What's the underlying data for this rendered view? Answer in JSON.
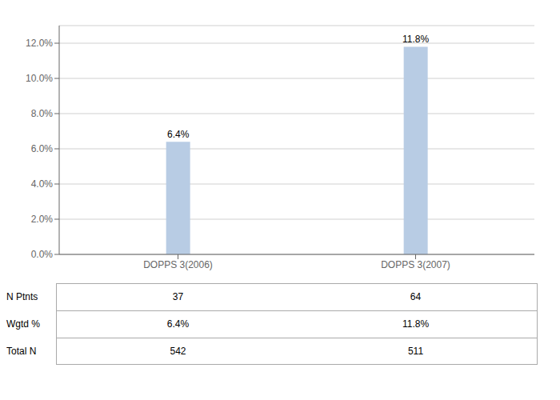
{
  "chart_data": {
    "type": "bar",
    "categories": [
      "DOPPS 3(2006)",
      "DOPPS 3(2007)"
    ],
    "values": [
      6.4,
      11.8
    ],
    "value_labels": [
      "6.4%",
      "11.8%"
    ],
    "data_labels": true,
    "color": "#b8cce4",
    "ylim": [
      0,
      13.0
    ],
    "yticks": [
      {
        "value": 0,
        "label": "0.0%"
      },
      {
        "value": 2.0,
        "label": "2.0%"
      },
      {
        "value": 4.0,
        "label": "4.0%"
      },
      {
        "value": 6.0,
        "label": "6.0%"
      },
      {
        "value": 8.0,
        "label": "8.0%"
      },
      {
        "value": 10.0,
        "label": "10.0%"
      },
      {
        "value": 12.0,
        "label": "12.0%"
      }
    ],
    "grid": true,
    "table": [
      {
        "label": "N Ptnts",
        "values": [
          37,
          64
        ]
      },
      {
        "label": "Wgtd %",
        "values": [
          6.4,
          11.8
        ],
        "value_labels": [
          "6.4%",
          "11.8%"
        ]
      },
      {
        "label": "Total N",
        "values": [
          542,
          511
        ]
      }
    ]
  }
}
